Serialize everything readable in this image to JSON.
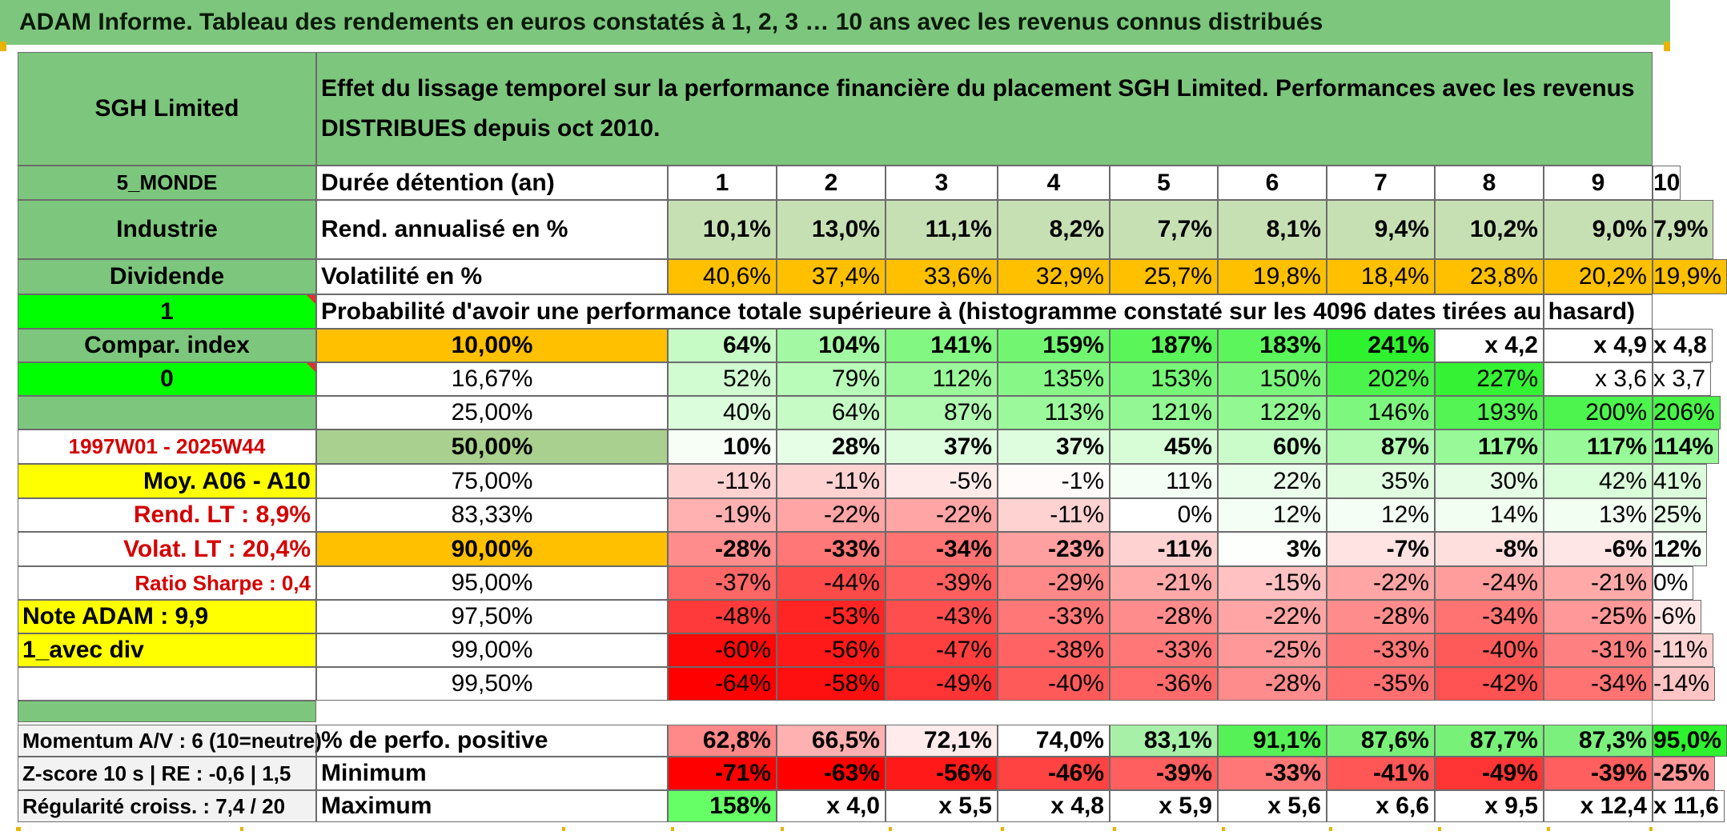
{
  "banner_title": "ADAM Informe. Tableau des rendements en euros constatés à 1, 2, 3 … 10 ans avec les revenus connus distribués",
  "fund_name": "SGH Limited",
  "description": "Effet du lissage temporel sur la performance financière du placement SGH Limited. Performances avec les revenus DISTRIBUES depuis oct 2010.",
  "sidebar": {
    "zone": "5_MONDE",
    "sector": "Industrie",
    "income": "Dividende",
    "one": "1",
    "compar": "Compar. index",
    "zero": "0",
    "period": "1997W01 - 2025W44",
    "moy": "Moy. A06 - A10",
    "rend_lt": "Rend. LT :   8,9%",
    "volat_lt": "Volat. LT :   20,4%",
    "sharpe": "Ratio Sharpe :    0,4",
    "note": "Note ADAM : 9,9",
    "avec_div": "1_avec div",
    "momentum": "Momentum A/V : 6 (10=neutre)",
    "zscore": "Z-score 10 s | RE : -0,6 | 1,5",
    "regularite": "Régularité croiss. : 7,4 / 20"
  },
  "labels": {
    "duree": "Durée détention (an)",
    "rend": "Rend. annualisé en %",
    "volat": "Volatilité en %",
    "proba": "Probabilité d'avoir une performance totale supérieure à (histogramme constaté sur les 4096 dates tirées au hasard)",
    "positive": "% de perfo. positive",
    "minimum": "Minimum",
    "maximum": "Maximum"
  },
  "years": [
    "1",
    "2",
    "3",
    "4",
    "5",
    "6",
    "7",
    "8",
    "9",
    "10"
  ],
  "rend_values": [
    "10,1%",
    "13,0%",
    "11,1%",
    "8,2%",
    "7,7%",
    "8,1%",
    "9,4%",
    "10,2%",
    "9,0%",
    "7,9%"
  ],
  "volat_values": [
    "40,6%",
    "37,4%",
    "33,6%",
    "32,9%",
    "25,7%",
    "19,8%",
    "18,4%",
    "23,8%",
    "20,2%",
    "19,9%"
  ],
  "prob_rows": [
    {
      "p": "10,00%",
      "vals": [
        "64%",
        "104%",
        "141%",
        "159%",
        "187%",
        "183%",
        "241%",
        "x 4,2",
        "x 4,9",
        "x 4,8"
      ]
    },
    {
      "p": "16,67%",
      "vals": [
        "52%",
        "79%",
        "112%",
        "135%",
        "153%",
        "150%",
        "202%",
        "227%",
        "x 3,6",
        "x 3,7"
      ]
    },
    {
      "p": "25,00%",
      "vals": [
        "40%",
        "64%",
        "87%",
        "113%",
        "121%",
        "122%",
        "146%",
        "193%",
        "200%",
        "206%"
      ]
    },
    {
      "p": "50,00%",
      "vals": [
        "10%",
        "28%",
        "37%",
        "37%",
        "45%",
        "60%",
        "87%",
        "117%",
        "117%",
        "114%"
      ]
    },
    {
      "p": "75,00%",
      "vals": [
        "-11%",
        "-11%",
        "-5%",
        "-1%",
        "11%",
        "22%",
        "35%",
        "30%",
        "42%",
        "41%"
      ]
    },
    {
      "p": "83,33%",
      "vals": [
        "-19%",
        "-22%",
        "-22%",
        "-11%",
        "0%",
        "12%",
        "12%",
        "14%",
        "13%",
        "25%"
      ]
    },
    {
      "p": "90,00%",
      "vals": [
        "-28%",
        "-33%",
        "-34%",
        "-23%",
        "-11%",
        "3%",
        "-7%",
        "-8%",
        "-6%",
        "12%"
      ]
    },
    {
      "p": "95,00%",
      "vals": [
        "-37%",
        "-44%",
        "-39%",
        "-29%",
        "-21%",
        "-15%",
        "-22%",
        "-24%",
        "-21%",
        "0%"
      ]
    },
    {
      "p": "97,50%",
      "vals": [
        "-48%",
        "-53%",
        "-43%",
        "-33%",
        "-28%",
        "-22%",
        "-28%",
        "-34%",
        "-25%",
        "-6%"
      ]
    },
    {
      "p": "99,00%",
      "vals": [
        "-60%",
        "-56%",
        "-47%",
        "-38%",
        "-33%",
        "-25%",
        "-33%",
        "-40%",
        "-31%",
        "-11%"
      ]
    },
    {
      "p": "99,50%",
      "vals": [
        "-64%",
        "-58%",
        "-49%",
        "-40%",
        "-36%",
        "-28%",
        "-35%",
        "-42%",
        "-34%",
        "-14%"
      ]
    }
  ],
  "positive_values": [
    "62,8%",
    "66,5%",
    "72,1%",
    "74,0%",
    "83,1%",
    "91,1%",
    "87,6%",
    "87,7%",
    "87,3%",
    "95,0%"
  ],
  "minimum_values": [
    "-71%",
    "-63%",
    "-56%",
    "-46%",
    "-39%",
    "-33%",
    "-41%",
    "-49%",
    "-39%",
    "-25%"
  ],
  "maximum_values": [
    "158%",
    "x 4,0",
    "x 5,5",
    "x 4,8",
    "x 5,9",
    "x 5,6",
    "x 6,6",
    "x 9,5",
    "x 12,4",
    "x 11,6"
  ],
  "colors": {
    "header_green": "#7dc67d",
    "light_green": "#c6e0b4",
    "orange": "#ffc000",
    "bright_green": "#00ff00",
    "yellow": "#ffff00",
    "label_red": "#d40000"
  }
}
